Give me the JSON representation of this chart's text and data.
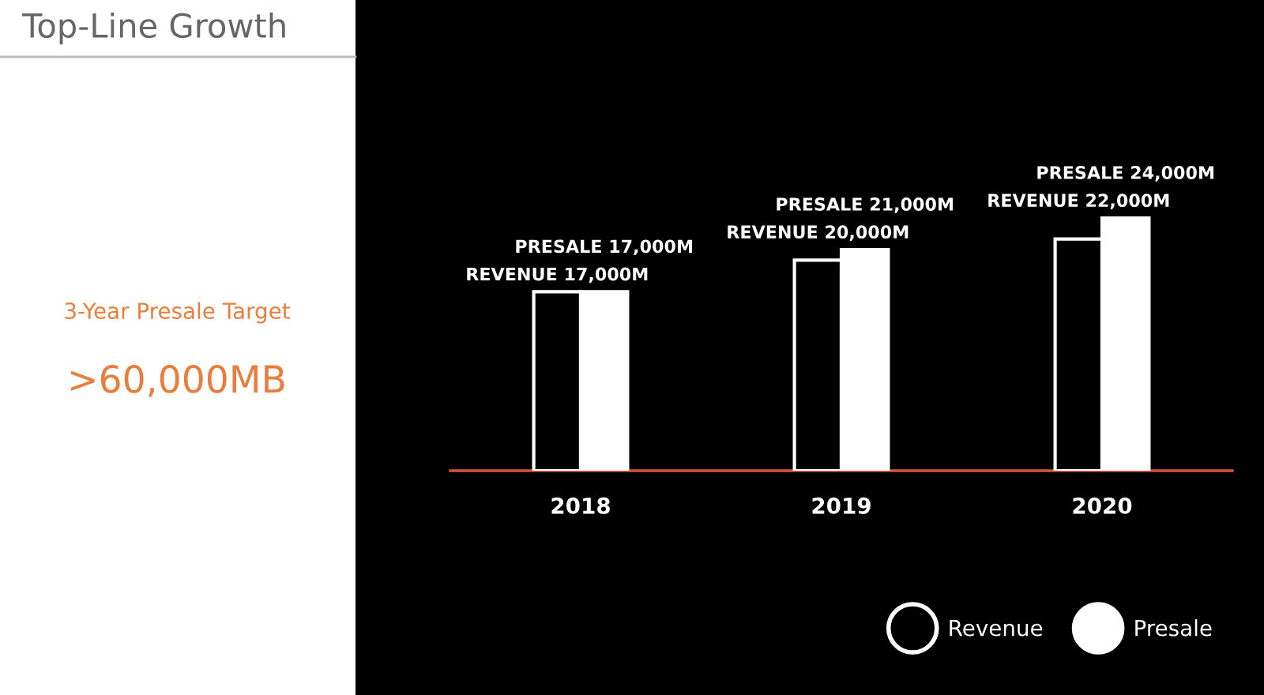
{
  "chart_data": {
    "type": "bar",
    "title": "Top-Line Growth",
    "annotations": [
      "3-Year Presale Target",
      ">60,000MB"
    ],
    "categories": [
      "2018",
      "2019",
      "2020"
    ],
    "series": [
      {
        "name": "Revenue",
        "color": "#000000",
        "values": [
          17000000000,
          20000000000,
          22000000000
        ],
        "value_labels": [
          "REVENUE 17,000M",
          "REVENUE 20,000M",
          "REVENUE 22,000M"
        ]
      },
      {
        "name": "Presale",
        "color": "#ffffff",
        "values": [
          17000000000,
          21000000000,
          24000000000
        ],
        "value_labels": [
          "PRESALE 17,000M",
          "PRESALE 21,000M",
          "PRESALE 24,000M"
        ]
      }
    ],
    "legend": "bottom right",
    "grid": false
  }
}
